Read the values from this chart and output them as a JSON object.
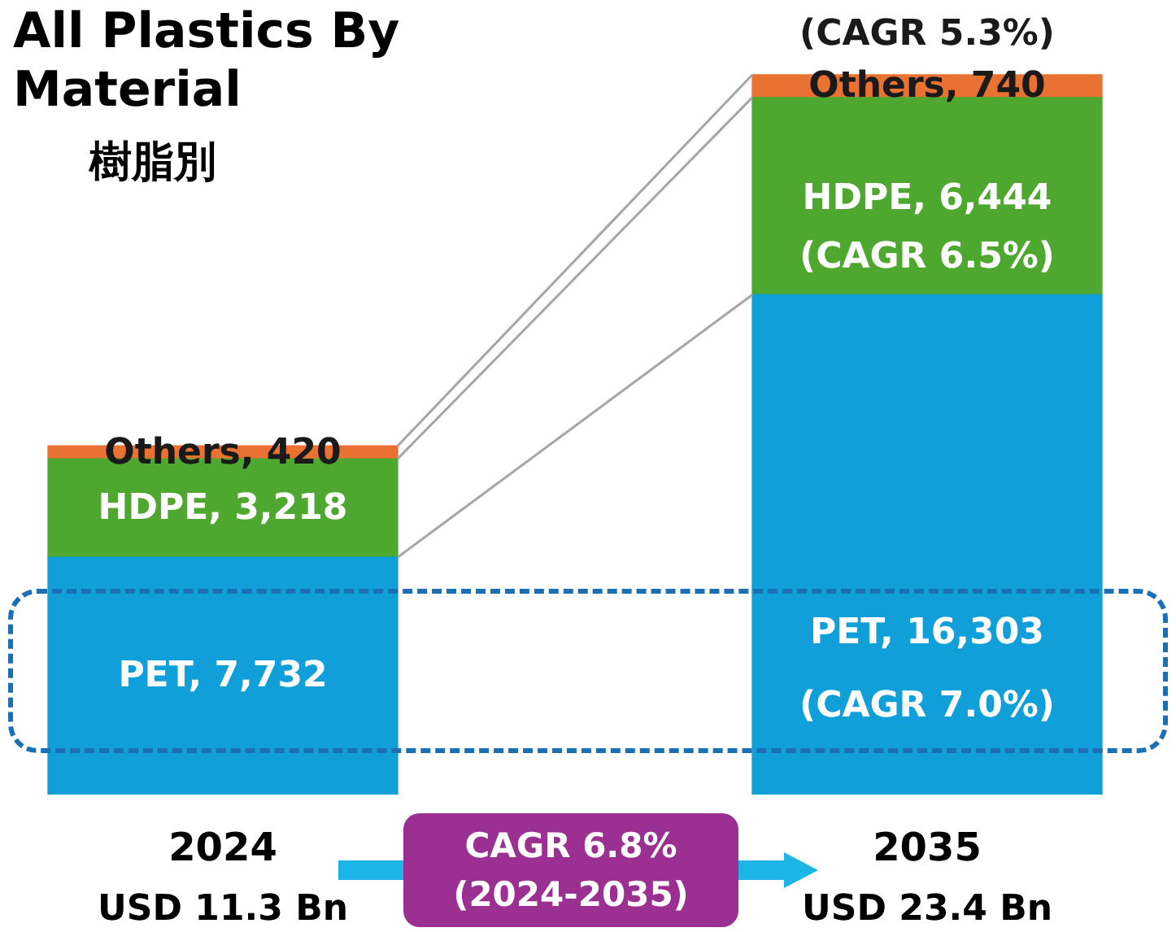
{
  "chart_data": {
    "type": "bar",
    "title": "All Plastics By Material",
    "subtitle": "樹脂別",
    "categories": [
      "2024",
      "2035"
    ],
    "stacked": true,
    "series": [
      {
        "color": "#109fd8",
        "values": [
          7732,
          16303
        ],
        "value_labels": [
          "PET, 7,732",
          "PET, 16,303"
        ]
      },
      {
        "color": "#4ea72e",
        "values": [
          3218,
          6444
        ],
        "value_labels": [
          "HDPE, 3,218",
          "HDPE, 6,444"
        ]
      },
      {
        "color": "#e97132",
        "values": [
          420,
          740
        ],
        "value_labels": [
          "Others, 420",
          "Others, 740"
        ]
      }
    ],
    "annotations": [
      "(CAGR 7.0%)",
      "(CAGR 6.5%)",
      "(CAGR 5.3%)",
      "CAGR 6.8%\n(2024-2035)",
      "USD 11.3 Bn",
      "USD 23.4 Bn"
    ]
  }
}
